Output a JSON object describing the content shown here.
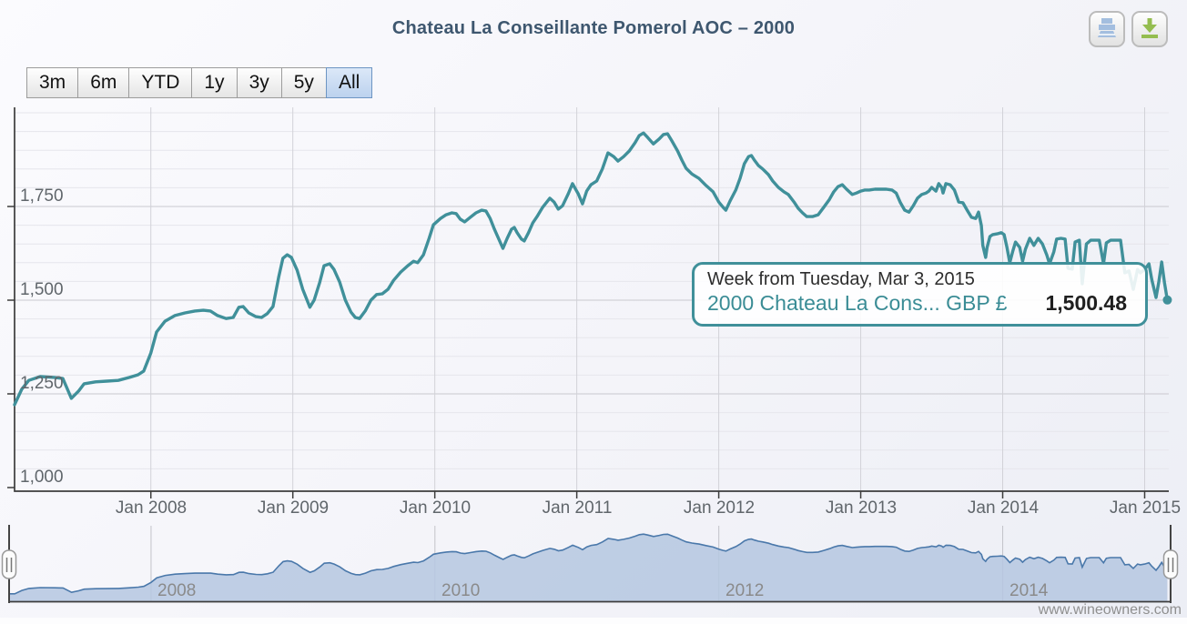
{
  "header": {
    "title": "Chateau La Conseillante Pomerol AOC – 2000"
  },
  "range_selector": {
    "buttons": [
      {
        "label": "3m",
        "selected": false
      },
      {
        "label": "6m",
        "selected": false
      },
      {
        "label": "YTD",
        "selected": false
      },
      {
        "label": "1y",
        "selected": false
      },
      {
        "label": "3y",
        "selected": false
      },
      {
        "label": "5y",
        "selected": false
      },
      {
        "label": "All",
        "selected": true
      }
    ]
  },
  "tooltip": {
    "header": "Week from Tuesday, Mar 3, 2015",
    "series_label": "2000 Chateau La Cons... GBP £",
    "value": "1,500.48"
  },
  "credits": "www.wineowners.com",
  "colors": {
    "series": "#40909a",
    "tooltip_border": "#40909a",
    "title_text": "#3e576f",
    "navigator_line": "#4a78aa",
    "navigator_fill": "#b5c7e0",
    "grid_major": "#c9c9cf",
    "grid_minor": "#e6e6ec",
    "grid_year": "#d2d2d8",
    "axis_line": "#3c3c3c",
    "selected_button_border": "#6d95c3",
    "print_icon_blue": "#a3bedf",
    "download_icon_green": "#94bd4f"
  },
  "chart_data": {
    "type": "line",
    "title": "Chateau La Conseillante Pomerol AOC – 2000",
    "xlabel": "",
    "ylabel": "",
    "x_unit": "decimal year (weekly prices)",
    "y_unit": "GBP £",
    "xlim": [
      2007.04,
      2015.17
    ],
    "ylim": [
      1000,
      2010
    ],
    "grid": true,
    "yaxis": {
      "tick_values": [
        1750,
        1500,
        1250,
        1000
      ],
      "tick_labels": [
        "1,750",
        "1,500",
        "1,250",
        "1,000"
      ],
      "minor_step": 50
    },
    "xaxis": {
      "tick_years": [
        2008,
        2009,
        2010,
        2011,
        2012,
        2013,
        2014,
        2015
      ],
      "tick_labels": [
        "Jan 2008",
        "Jan 2009",
        "Jan 2010",
        "Jan 2011",
        "Jan 2012",
        "Jan 2013",
        "Jan 2014",
        "Jan 2015"
      ]
    },
    "navigator": {
      "tick_years": [
        2008,
        2010,
        2012,
        2014
      ],
      "tick_labels": [
        "2008",
        "2010",
        "2012",
        "2014"
      ]
    },
    "series": [
      {
        "name": "2000 Chateau La Conseillante Pomerol AOC",
        "unit": "GBP £",
        "last_point": {
          "date": "Tuesday, Mar 3, 2015",
          "value": 1500.48
        },
        "points": [
          [
            2007.04,
            1221
          ],
          [
            2007.09,
            1262
          ],
          [
            2007.14,
            1286
          ],
          [
            2007.22,
            1296
          ],
          [
            2007.32,
            1294
          ],
          [
            2007.38,
            1291
          ],
          [
            2007.44,
            1238
          ],
          [
            2007.49,
            1257
          ],
          [
            2007.53,
            1277
          ],
          [
            2007.61,
            1282
          ],
          [
            2007.69,
            1284
          ],
          [
            2007.77,
            1286
          ],
          [
            2007.85,
            1294
          ],
          [
            2007.91,
            1301
          ],
          [
            2007.95,
            1311
          ],
          [
            2008.0,
            1359
          ],
          [
            2008.04,
            1415
          ],
          [
            2008.1,
            1444
          ],
          [
            2008.17,
            1459
          ],
          [
            2008.24,
            1466
          ],
          [
            2008.31,
            1471
          ],
          [
            2008.37,
            1473
          ],
          [
            2008.42,
            1471
          ],
          [
            2008.47,
            1459
          ],
          [
            2008.53,
            1451
          ],
          [
            2008.58,
            1454
          ],
          [
            2008.62,
            1481
          ],
          [
            2008.65,
            1483
          ],
          [
            2008.69,
            1466
          ],
          [
            2008.74,
            1456
          ],
          [
            2008.78,
            1454
          ],
          [
            2008.82,
            1464
          ],
          [
            2008.86,
            1483
          ],
          [
            2008.9,
            1561
          ],
          [
            2008.93,
            1612
          ],
          [
            2008.96,
            1621
          ],
          [
            2008.99,
            1614
          ],
          [
            2009.03,
            1580
          ],
          [
            2009.07,
            1529
          ],
          [
            2009.12,
            1481
          ],
          [
            2009.15,
            1500
          ],
          [
            2009.19,
            1548
          ],
          [
            2009.22,
            1592
          ],
          [
            2009.26,
            1597
          ],
          [
            2009.29,
            1582
          ],
          [
            2009.33,
            1548
          ],
          [
            2009.37,
            1500
          ],
          [
            2009.41,
            1468
          ],
          [
            2009.44,
            1454
          ],
          [
            2009.47,
            1451
          ],
          [
            2009.51,
            1471
          ],
          [
            2009.55,
            1500
          ],
          [
            2009.59,
            1515
          ],
          [
            2009.63,
            1517
          ],
          [
            2009.67,
            1529
          ],
          [
            2009.71,
            1553
          ],
          [
            2009.76,
            1575
          ],
          [
            2009.81,
            1592
          ],
          [
            2009.85,
            1604
          ],
          [
            2009.88,
            1600
          ],
          [
            2009.92,
            1621
          ],
          [
            2009.96,
            1665
          ],
          [
            2009.99,
            1701
          ],
          [
            2010.04,
            1718
          ],
          [
            2010.08,
            1728
          ],
          [
            2010.12,
            1733
          ],
          [
            2010.15,
            1731
          ],
          [
            2010.18,
            1716
          ],
          [
            2010.21,
            1709
          ],
          [
            2010.25,
            1721
          ],
          [
            2010.29,
            1733
          ],
          [
            2010.33,
            1740
          ],
          [
            2010.36,
            1738
          ],
          [
            2010.39,
            1718
          ],
          [
            2010.42,
            1689
          ],
          [
            2010.46,
            1655
          ],
          [
            2010.48,
            1638
          ],
          [
            2010.51,
            1665
          ],
          [
            2010.54,
            1689
          ],
          [
            2010.56,
            1694
          ],
          [
            2010.58,
            1680
          ],
          [
            2010.61,
            1663
          ],
          [
            2010.63,
            1658
          ],
          [
            2010.66,
            1680
          ],
          [
            2010.69,
            1706
          ],
          [
            2010.72,
            1723
          ],
          [
            2010.76,
            1748
          ],
          [
            2010.81,
            1772
          ],
          [
            2010.84,
            1762
          ],
          [
            2010.87,
            1743
          ],
          [
            2010.9,
            1752
          ],
          [
            2010.94,
            1784
          ],
          [
            2010.97,
            1811
          ],
          [
            2011.01,
            1784
          ],
          [
            2011.04,
            1757
          ],
          [
            2011.07,
            1791
          ],
          [
            2011.1,
            1808
          ],
          [
            2011.14,
            1818
          ],
          [
            2011.18,
            1850
          ],
          [
            2011.22,
            1893
          ],
          [
            2011.26,
            1883
          ],
          [
            2011.29,
            1871
          ],
          [
            2011.33,
            1883
          ],
          [
            2011.37,
            1898
          ],
          [
            2011.41,
            1920
          ],
          [
            2011.44,
            1939
          ],
          [
            2011.47,
            1946
          ],
          [
            2011.5,
            1934
          ],
          [
            2011.54,
            1917
          ],
          [
            2011.58,
            1930
          ],
          [
            2011.61,
            1942
          ],
          [
            2011.64,
            1944
          ],
          [
            2011.67,
            1925
          ],
          [
            2011.71,
            1898
          ],
          [
            2011.74,
            1874
          ],
          [
            2011.77,
            1852
          ],
          [
            2011.81,
            1837
          ],
          [
            2011.86,
            1825
          ],
          [
            2011.91,
            1806
          ],
          [
            2011.96,
            1789
          ],
          [
            2012.0,
            1762
          ],
          [
            2012.03,
            1748
          ],
          [
            2012.05,
            1740
          ],
          [
            2012.08,
            1765
          ],
          [
            2012.12,
            1794
          ],
          [
            2012.15,
            1825
          ],
          [
            2012.18,
            1864
          ],
          [
            2012.21,
            1883
          ],
          [
            2012.23,
            1886
          ],
          [
            2012.25,
            1874
          ],
          [
            2012.28,
            1859
          ],
          [
            2012.31,
            1850
          ],
          [
            2012.35,
            1835
          ],
          [
            2012.38,
            1818
          ],
          [
            2012.42,
            1801
          ],
          [
            2012.46,
            1789
          ],
          [
            2012.49,
            1782
          ],
          [
            2012.53,
            1762
          ],
          [
            2012.56,
            1745
          ],
          [
            2012.59,
            1733
          ],
          [
            2012.62,
            1723
          ],
          [
            2012.66,
            1723
          ],
          [
            2012.7,
            1728
          ],
          [
            2012.74,
            1748
          ],
          [
            2012.78,
            1769
          ],
          [
            2012.81,
            1789
          ],
          [
            2012.84,
            1803
          ],
          [
            2012.87,
            1808
          ],
          [
            2012.9,
            1796
          ],
          [
            2012.94,
            1782
          ],
          [
            2012.97,
            1786
          ],
          [
            2013.0,
            1791
          ],
          [
            2013.03,
            1794
          ],
          [
            2013.06,
            1794
          ],
          [
            2013.1,
            1796
          ],
          [
            2013.14,
            1796
          ],
          [
            2013.18,
            1796
          ],
          [
            2013.22,
            1794
          ],
          [
            2013.25,
            1786
          ],
          [
            2013.28,
            1760
          ],
          [
            2013.31,
            1740
          ],
          [
            2013.34,
            1735
          ],
          [
            2013.37,
            1752
          ],
          [
            2013.4,
            1772
          ],
          [
            2013.43,
            1782
          ],
          [
            2013.46,
            1786
          ],
          [
            2013.48,
            1791
          ],
          [
            2013.5,
            1801
          ],
          [
            2013.53,
            1791
          ],
          [
            2013.55,
            1811
          ],
          [
            2013.57,
            1801
          ],
          [
            2013.58,
            1786
          ],
          [
            2013.6,
            1811
          ],
          [
            2013.63,
            1808
          ],
          [
            2013.66,
            1794
          ],
          [
            2013.69,
            1762
          ],
          [
            2013.72,
            1760
          ],
          [
            2013.75,
            1740
          ],
          [
            2013.78,
            1721
          ],
          [
            2013.81,
            1718
          ],
          [
            2013.83,
            1735
          ],
          [
            2013.85,
            1699
          ],
          [
            2013.86,
            1646
          ],
          [
            2013.88,
            1614
          ],
          [
            2013.89,
            1641
          ],
          [
            2013.91,
            1670
          ],
          [
            2013.93,
            1675
          ],
          [
            2013.96,
            1677
          ],
          [
            2013.99,
            1680
          ],
          [
            2014.01,
            1675
          ],
          [
            2014.03,
            1641
          ],
          [
            2014.05,
            1600
          ],
          [
            2014.07,
            1629
          ],
          [
            2014.09,
            1655
          ],
          [
            2014.12,
            1641
          ],
          [
            2014.14,
            1604
          ],
          [
            2014.16,
            1636
          ],
          [
            2014.19,
            1665
          ],
          [
            2014.22,
            1646
          ],
          [
            2014.25,
            1665
          ],
          [
            2014.28,
            1650
          ],
          [
            2014.31,
            1621
          ],
          [
            2014.33,
            1597
          ],
          [
            2014.36,
            1629
          ],
          [
            2014.38,
            1663
          ],
          [
            2014.41,
            1665
          ],
          [
            2014.44,
            1663
          ],
          [
            2014.46,
            1585
          ],
          [
            2014.49,
            1583
          ],
          [
            2014.51,
            1655
          ],
          [
            2014.54,
            1660
          ],
          [
            2014.56,
            1544
          ],
          [
            2014.59,
            1650
          ],
          [
            2014.62,
            1660
          ],
          [
            2014.65,
            1660
          ],
          [
            2014.68,
            1660
          ],
          [
            2014.71,
            1597
          ],
          [
            2014.73,
            1653
          ],
          [
            2014.76,
            1660
          ],
          [
            2014.8,
            1660
          ],
          [
            2014.83,
            1660
          ],
          [
            2014.86,
            1573
          ],
          [
            2014.89,
            1578
          ],
          [
            2014.92,
            1529
          ],
          [
            2014.95,
            1582
          ],
          [
            2014.97,
            1573
          ],
          [
            2015.0,
            1582
          ],
          [
            2015.03,
            1597
          ],
          [
            2015.05,
            1555
          ],
          [
            2015.08,
            1507
          ],
          [
            2015.1,
            1550
          ],
          [
            2015.12,
            1602
          ],
          [
            2015.14,
            1546
          ],
          [
            2015.16,
            1500.48
          ]
        ]
      }
    ]
  }
}
